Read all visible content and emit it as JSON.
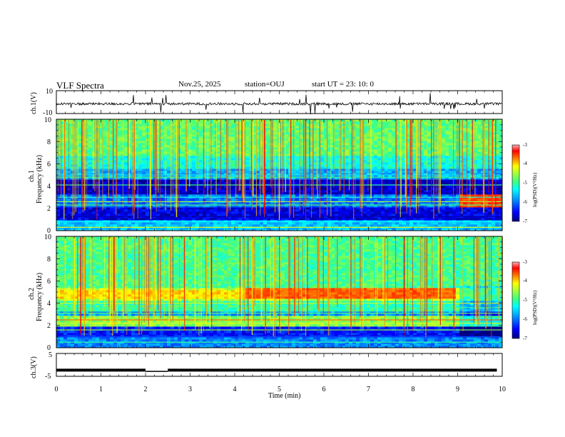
{
  "header": {
    "title": "VLF Spectra",
    "date": "Nov.25, 2025",
    "station": "station=OUJ",
    "start_time": "start UT = 23: 10: 0"
  },
  "colors": {
    "spectrogram_scale": [
      "#000080",
      "#0000ff",
      "#00a0ff",
      "#00ffff",
      "#40ff80",
      "#a0ff40",
      "#ffff00",
      "#ff8000",
      "#ff0000",
      "#800000"
    ]
  },
  "chart_data": [
    {
      "type": "line",
      "panel": "ch1-waveform",
      "ylabel": "ch.1(V)",
      "yticks": [
        "10",
        "-10"
      ],
      "ylim": [
        -10,
        10
      ],
      "xlim": [
        0,
        10
      ],
      "baseline": -1.5
    },
    {
      "type": "heatmap",
      "panel": "ch1-spectrogram",
      "ylabel": "ch.1\nFrequency (kHz)",
      "ylabel_line1": "ch.1",
      "ylabel_line2": "Frequency (kHz)",
      "yticks": [
        "0",
        "2",
        "4",
        "6",
        "8",
        "10"
      ],
      "ylim": [
        0,
        10
      ],
      "xlim": [
        0,
        10
      ],
      "colorbar": {
        "label": "log(PSD)(V²/Hz)",
        "ticks": [
          "-3",
          "-4",
          "-5",
          "-6",
          "-7"
        ],
        "range": [
          -7,
          -3
        ]
      },
      "bands": [
        {
          "from": 0,
          "to": 1.0,
          "level": -5.6
        },
        {
          "from": 1.0,
          "to": 2.1,
          "level": -6.6
        },
        {
          "from": 2.1,
          "to": 3.2,
          "level": -6.0
        },
        {
          "from": 3.2,
          "to": 4.6,
          "level": -6.7
        },
        {
          "from": 4.6,
          "to": 5.6,
          "level": -5.7
        },
        {
          "from": 5.6,
          "to": 6.8,
          "level": -5.2
        },
        {
          "from": 6.8,
          "to": 10,
          "level": -4.8
        }
      ]
    },
    {
      "type": "heatmap",
      "panel": "ch2-spectrogram",
      "ylabel_line1": "ch.2",
      "ylabel_line2": "Frequency (kHz)",
      "yticks": [
        "0",
        "2",
        "4",
        "6",
        "8",
        "10"
      ],
      "ylim": [
        0,
        10
      ],
      "xlim": [
        0,
        10
      ],
      "colorbar": {
        "label": "log(PSD)(V²/Hz)",
        "ticks": [
          "-3",
          "-4",
          "-5",
          "-6",
          "-7"
        ],
        "range": [
          -7,
          -3
        ]
      },
      "bands": [
        {
          "from": 0,
          "to": 1.0,
          "level": -5.9
        },
        {
          "from": 1.0,
          "to": 2.0,
          "level": -6.4
        },
        {
          "from": 2.0,
          "to": 2.8,
          "level": -4.6
        },
        {
          "from": 2.8,
          "to": 3.3,
          "level": -5.8
        },
        {
          "from": 3.3,
          "to": 4.2,
          "level": -5.0
        },
        {
          "from": 4.2,
          "to": 5.4,
          "level": -4.4
        },
        {
          "from": 5.4,
          "to": 10,
          "level": -4.9
        }
      ],
      "strong_band": {
        "from_khz": 4.5,
        "to_khz": 5.3,
        "start_min": 4.25,
        "end_min": 8.95,
        "level": -3.6
      }
    },
    {
      "type": "line",
      "panel": "ch3-waveform",
      "ylabel": "ch.3(V)",
      "yticks": [
        "5",
        "-5"
      ],
      "ylim": [
        -5,
        5
      ],
      "xlim": [
        0,
        10
      ],
      "baseline": -2.3,
      "gap_min": [
        2.0,
        2.5
      ]
    }
  ],
  "xaxis": {
    "label": "Time (min)",
    "ticks": [
      "0",
      "1",
      "2",
      "3",
      "4",
      "5",
      "6",
      "7",
      "8",
      "9",
      "10"
    ]
  }
}
